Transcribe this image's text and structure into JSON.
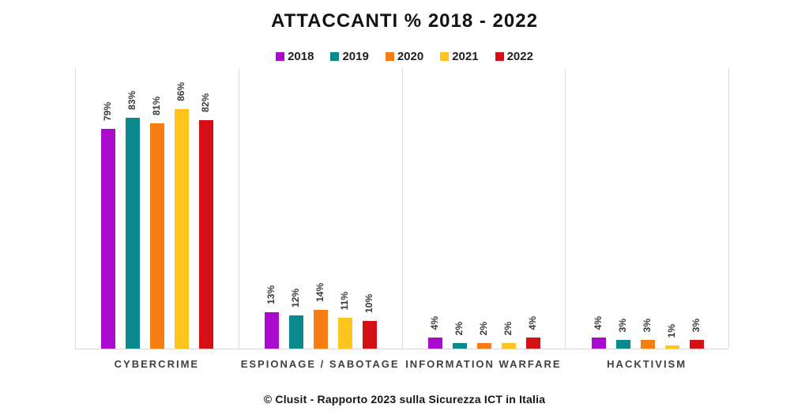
{
  "chart_data": {
    "type": "bar",
    "title": "ATTACCANTI % 2018 - 2022",
    "categories": [
      "CYBERCRIME",
      "ESPIONAGE / SABOTAGE",
      "INFORMATION WARFARE",
      "HACKTIVISM"
    ],
    "series": [
      {
        "name": "2018",
        "color": "#aa0acd",
        "values": [
          79,
          13,
          4,
          4
        ]
      },
      {
        "name": "2019",
        "color": "#0a8a8f",
        "values": [
          83,
          12,
          2,
          3
        ]
      },
      {
        "name": "2020",
        "color": "#f57d12",
        "values": [
          81,
          14,
          2,
          3
        ]
      },
      {
        "name": "2021",
        "color": "#ffc41e",
        "values": [
          86,
          11,
          2,
          1
        ]
      },
      {
        "name": "2022",
        "color": "#d41014",
        "values": [
          82,
          10,
          4,
          3
        ]
      }
    ],
    "value_suffix": "%",
    "ylim": [
      0,
      100
    ],
    "legend_position": "top",
    "grid": false,
    "bar_label_rotation": 90
  },
  "footer": "© Clusit - Rapporto 2023 sulla Sicurezza ICT in Italia"
}
